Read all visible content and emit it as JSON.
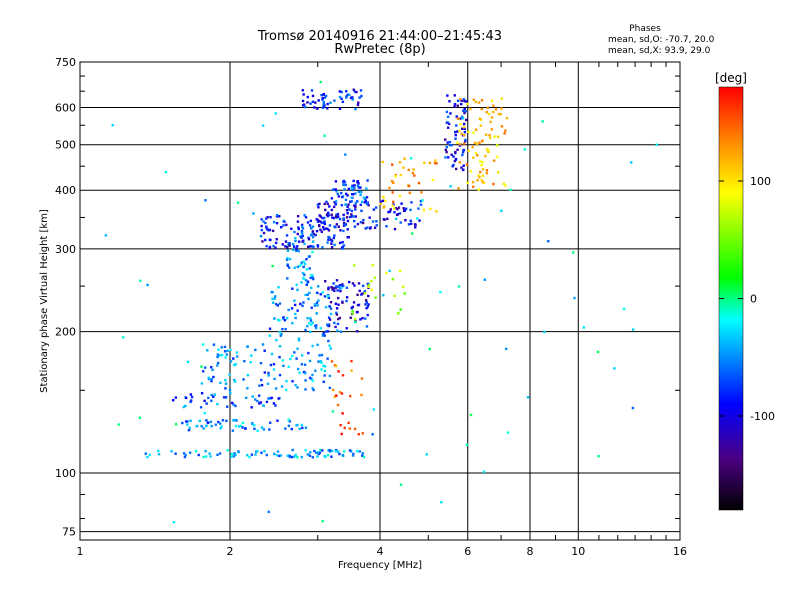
{
  "chart_data": {
    "type": "scatter",
    "title": "Tromsø 20140916 21:44:00–21:45:43",
    "subtitle": "RwPretec (8p)",
    "xlabel": "Frequency [MHz]",
    "ylabel": "Stationary phase Virtual Height [km]",
    "x_scale": "log",
    "y_scale": "log",
    "xlim": [
      1,
      16
    ],
    "ylim": [
      72,
      750
    ],
    "x_ticks": [
      1,
      2,
      4,
      6,
      8,
      10,
      16
    ],
    "x_tick_labels": [
      "1",
      "2",
      "4",
      "6",
      "8",
      "10",
      "16"
    ],
    "y_ticks": [
      75,
      100,
      200,
      300,
      400,
      500,
      600,
      750
    ],
    "y_tick_labels": [
      "75",
      "100",
      "200",
      "300",
      "400",
      "500",
      "600",
      "750"
    ],
    "grid": true,
    "stats": {
      "heading": "Phases",
      "line1": "mean, sd,O: -70.7, 20.0",
      "line2": "mean, sd,X:  93.9, 29.0"
    },
    "colorbar": {
      "label": "[deg]",
      "min": -180,
      "max": 180,
      "ticks": [
        100,
        0,
        -100
      ],
      "tick_labels": [
        "100",
        "0",
        "-100"
      ]
    },
    "trace_groups": [
      {
        "x": [
          1.35,
          3.75
        ],
        "y": [
          108,
          112
        ],
        "phase": -55,
        "count": 90
      },
      {
        "x": [
          1.6,
          2.9
        ],
        "y": [
          123,
          130
        ],
        "phase": -60,
        "count": 60
      },
      {
        "x": [
          1.5,
          2.6
        ],
        "y": [
          138,
          148
        ],
        "phase": -75,
        "count": 45
      },
      {
        "x": [
          1.75,
          3.2
        ],
        "y": [
          150,
          188
        ],
        "phase": -60,
        "count": 120
      },
      {
        "x": [
          2.4,
          3.4
        ],
        "y": [
          190,
          250
        ],
        "phase": -65,
        "count": 90
      },
      {
        "x": [
          2.6,
          3.0
        ],
        "y": [
          250,
          340
        ],
        "phase": -60,
        "count": 60
      },
      {
        "x": [
          2.3,
          3.5
        ],
        "y": [
          300,
          355
        ],
        "phase": -95,
        "count": 130
      },
      {
        "x": [
          3.0,
          4.9
        ],
        "y": [
          330,
          380
        ],
        "phase": -105,
        "count": 110
      },
      {
        "x": [
          3.1,
          3.8
        ],
        "y": [
          200,
          260
        ],
        "phase": -105,
        "count": 80
      },
      {
        "x": [
          3.2,
          3.8
        ],
        "y": [
          370,
          420
        ],
        "phase": -80,
        "count": 60
      },
      {
        "x": [
          2.8,
          3.7
        ],
        "y": [
          595,
          655
        ],
        "phase": -90,
        "count": 55
      },
      {
        "x": [
          4.0,
          5.2
        ],
        "y": [
          360,
          470
        ],
        "phase": 120,
        "count": 40
      },
      {
        "x": [
          5.4,
          6.0
        ],
        "y": [
          440,
          640
        ],
        "phase": -100,
        "count": 70
      },
      {
        "x": [
          5.7,
          7.2
        ],
        "y": [
          400,
          640
        ],
        "phase": 115,
        "count": 90
      },
      {
        "x": [
          3.2,
          3.7
        ],
        "y": [
          118,
          175
        ],
        "phase": 150,
        "count": 25
      },
      {
        "x": [
          3.5,
          4.5
        ],
        "y": [
          210,
          280
        ],
        "phase": 60,
        "count": 20
      },
      {
        "x": [
          1.05,
          15.0
        ],
        "y": [
          78,
          700
        ],
        "phase": -40,
        "count": 70
      }
    ]
  }
}
